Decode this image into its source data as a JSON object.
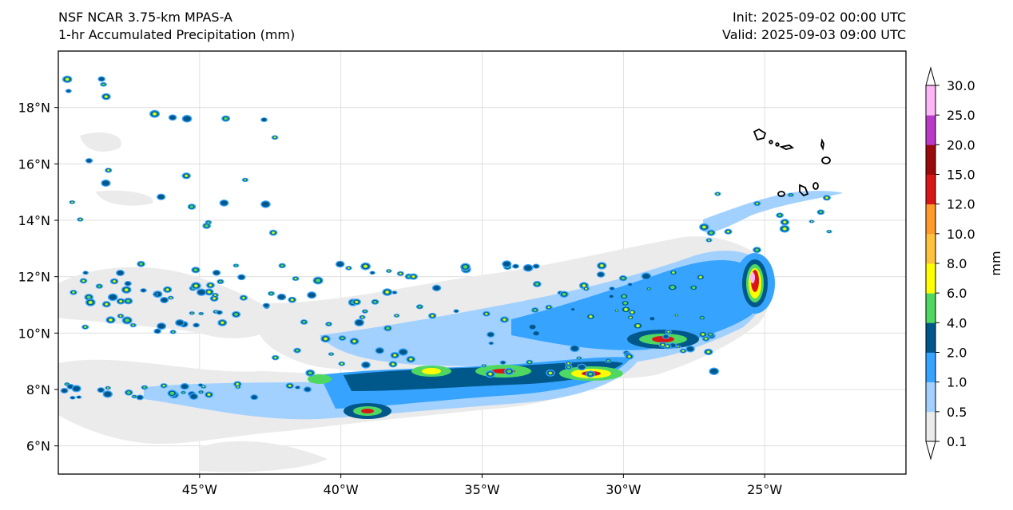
{
  "header": {
    "model": "NSF NCAR 3.75-km MPAS-A",
    "field": "1-hr Accumulated Precipitation (mm)",
    "init": "Init: 2025-09-02 00:00 UTC",
    "valid": "Valid: 2025-09-03 09:00 UTC"
  },
  "map": {
    "lon_range": [
      -50,
      -20
    ],
    "lat_range": [
      5,
      20
    ],
    "lon_ticks": [
      {
        "value": -45,
        "label": "45°W"
      },
      {
        "value": -40,
        "label": "40°W"
      },
      {
        "value": -35,
        "label": "35°W"
      },
      {
        "value": -30,
        "label": "30°W"
      },
      {
        "value": -25,
        "label": "25°W"
      }
    ],
    "lat_ticks": [
      {
        "value": 6,
        "label": "6°N"
      },
      {
        "value": 8,
        "label": "8°N"
      },
      {
        "value": 10,
        "label": "10°N"
      },
      {
        "value": 12,
        "label": "12°N"
      },
      {
        "value": 14,
        "label": "14°N"
      },
      {
        "value": 16,
        "label": "16°N"
      },
      {
        "value": 18,
        "label": "18°N"
      }
    ],
    "islands": "Cabo Verde"
  },
  "colorbar": {
    "unit_label": "mm",
    "levels": [
      "0.1",
      "0.5",
      "1.0",
      "2.0",
      "4.0",
      "6.0",
      "8.0",
      "10.0",
      "12.0",
      "15.0",
      "20.0",
      "25.0",
      "30.0"
    ],
    "colors": [
      "#ebebeb",
      "#a3d1ff",
      "#36a3ff",
      "#00588a",
      "#4ed862",
      "#ffff00",
      "#ffc23c",
      "#ff9a2c",
      "#d81616",
      "#9a0a0a",
      "#b83ac7",
      "#ffb6f6"
    ],
    "under_color": "#ffffff",
    "over_color": "#ffffff"
  }
}
